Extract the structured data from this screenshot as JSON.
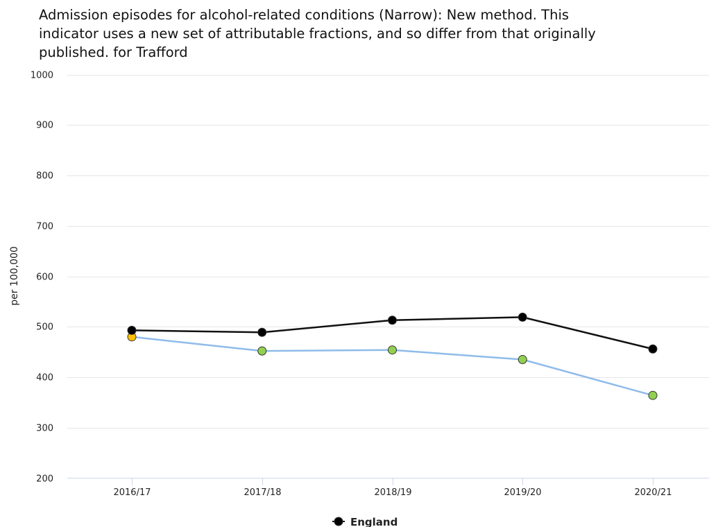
{
  "chart_data": {
    "type": "line",
    "title_lines": [
      "Admission episodes for alcohol-related conditions (Narrow): New method. This",
      "indicator uses a new set of attributable fractions, and so differ from that originally",
      "published. for Trafford"
    ],
    "xlabel": "",
    "ylabel": "per 100,000",
    "categories": [
      "2016/17",
      "2017/18",
      "2018/19",
      "2019/20",
      "2020/21"
    ],
    "ylim": [
      200,
      1000
    ],
    "yticks": [
      200,
      300,
      400,
      500,
      600,
      700,
      800,
      900,
      1000
    ],
    "grid": true,
    "legend_position": "bottom-center",
    "series": [
      {
        "name": "England",
        "values": [
          493,
          489,
          513,
          519,
          456
        ],
        "line_color": "#111111",
        "marker_colors": [
          "#000000",
          "#000000",
          "#000000",
          "#000000",
          "#000000"
        ],
        "in_legend": true
      },
      {
        "name": "",
        "values": [
          480,
          452,
          454,
          435,
          364
        ],
        "line_color": "#8fbbea",
        "marker_colors": [
          "#ffc000",
          "#92d050",
          "#92d050",
          "#92d050",
          "#92d050"
        ],
        "in_legend": false
      }
    ]
  }
}
